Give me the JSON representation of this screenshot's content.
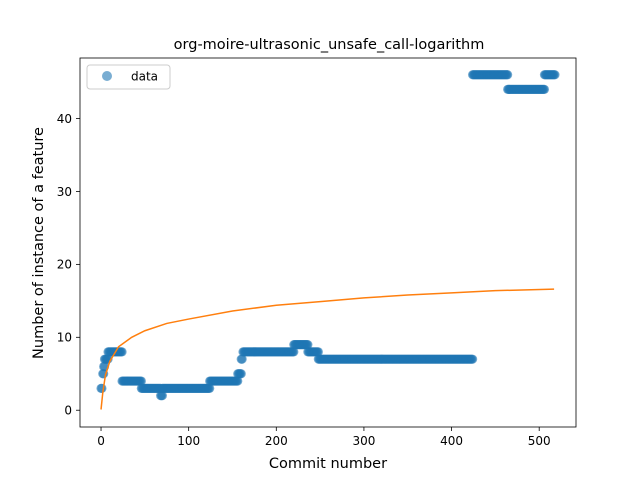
{
  "chart_data": {
    "type": "scatter",
    "title": "org-moire-ultrasonic_unsafe_call-logarithm",
    "xlabel": "Commit number",
    "ylabel": "Number of instance of a feature",
    "xlim": [
      -24,
      542
    ],
    "ylim": [
      -2.3,
      48.3
    ],
    "xticks": [
      0,
      100,
      200,
      300,
      400,
      500
    ],
    "yticks": [
      0,
      10,
      20,
      30,
      40
    ],
    "grid": false,
    "legend": {
      "placement": "top-left",
      "entries": [
        "data"
      ]
    },
    "colors": {
      "data": "#1f77b4",
      "fit": "#ff7f0e"
    },
    "series": [
      {
        "name": "data",
        "kind": "scatter",
        "segments": [
          {
            "x_start": 0,
            "x_end": 1,
            "y": 3
          },
          {
            "x_start": 2,
            "x_end": 3,
            "y": 5
          },
          {
            "x_start": 3,
            "x_end": 4,
            "y": 6
          },
          {
            "x_start": 4,
            "x_end": 8,
            "y": 7
          },
          {
            "x_start": 8,
            "x_end": 24,
            "y": 8
          },
          {
            "x_start": 24,
            "x_end": 46,
            "y": 4
          },
          {
            "x_start": 46,
            "x_end": 68,
            "y": 3
          },
          {
            "x_start": 68,
            "x_end": 70,
            "y": 2
          },
          {
            "x_start": 70,
            "x_end": 124,
            "y": 3
          },
          {
            "x_start": 124,
            "x_end": 156,
            "y": 4
          },
          {
            "x_start": 156,
            "x_end": 160,
            "y": 5
          },
          {
            "x_start": 160,
            "x_end": 161,
            "y": 7
          },
          {
            "x_start": 162,
            "x_end": 220,
            "y": 8
          },
          {
            "x_start": 220,
            "x_end": 236,
            "y": 9
          },
          {
            "x_start": 236,
            "x_end": 248,
            "y": 8
          },
          {
            "x_start": 248,
            "x_end": 424,
            "y": 7
          },
          {
            "x_start": 424,
            "x_end": 464,
            "y": 46
          },
          {
            "x_start": 464,
            "x_end": 506,
            "y": 44
          },
          {
            "x_start": 506,
            "x_end": 518,
            "y": 46
          }
        ]
      },
      {
        "name": "",
        "kind": "line",
        "x": [
          0,
          2,
          5,
          10,
          20,
          35,
          50,
          75,
          100,
          150,
          200,
          250,
          300,
          350,
          400,
          450,
          517
        ],
        "values": [
          0.1,
          2.4,
          4.8,
          6.7,
          8.7,
          10.0,
          10.9,
          11.9,
          12.5,
          13.6,
          14.4,
          14.9,
          15.4,
          15.8,
          16.1,
          16.4,
          16.6
        ]
      }
    ]
  }
}
